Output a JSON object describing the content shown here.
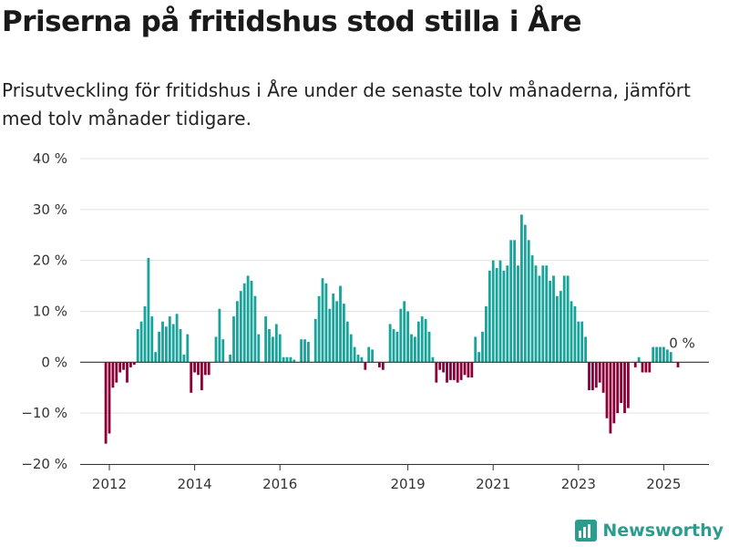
{
  "title": "Priserna på fritidshus stod stilla i Åre",
  "subtitle": "Prisutveckling för fritidshus i Åre under de senaste tolv månaderna, jämfört med tolv månader tidigare.",
  "brand": "Newsworthy",
  "colors": {
    "positive": "#18a39b",
    "negative": "#8c0038",
    "brand": "#2a9d8f"
  },
  "chart_data": {
    "type": "bar",
    "ylim": [
      -20,
      40
    ],
    "yticks": [
      -20,
      -10,
      0,
      10,
      20,
      30,
      40
    ],
    "ytick_labels": [
      "−20 %",
      "−10 %",
      "0 %",
      "10 %",
      "20 %",
      "30 %",
      "40 %"
    ],
    "xticks": [
      {
        "label": "2012",
        "date": "2012-01"
      },
      {
        "label": "2014",
        "date": "2014-01"
      },
      {
        "label": "2016",
        "date": "2016-01"
      },
      {
        "label": "2019",
        "date": "2019-01"
      },
      {
        "label": "2021",
        "date": "2021-01"
      },
      {
        "label": "2023",
        "date": "2023-01"
      },
      {
        "label": "2025",
        "date": "2025-01"
      }
    ],
    "last_label": "0 %",
    "series": [
      {
        "start": "2011-12",
        "values": [
          -16,
          -14,
          -5,
          -4,
          -2,
          -1.5,
          -4,
          -1,
          -0.5,
          6.5,
          8,
          11,
          20.5,
          9,
          2,
          6,
          8,
          7,
          9,
          7.5,
          9.5,
          6.5,
          1.5,
          5.5,
          -6,
          -2,
          -2.5,
          -5.5,
          -2.5,
          -2.5,
          0,
          5,
          10.5,
          4.5,
          0,
          1.5,
          9,
          12,
          14,
          15.5,
          17,
          16,
          13,
          5.5,
          0,
          9,
          6.5,
          5,
          7.5,
          5.5,
          1,
          1,
          1,
          0.5,
          0,
          4.5,
          4.5,
          4,
          0,
          8.5,
          13,
          16.5,
          15.5,
          10.5,
          13.5,
          12,
          15,
          11.5,
          8,
          5.5,
          3,
          1.5,
          1,
          -1.5,
          3,
          2.5,
          0,
          -1,
          -1.5,
          0,
          7.5,
          6.5,
          6,
          10.5,
          12,
          10,
          5.5,
          5,
          8,
          9,
          8.5,
          6,
          1,
          -4,
          -1.5,
          -2,
          -4,
          -3.5,
          -3.5,
          -4,
          -3.5,
          -2.5,
          -3,
          -3,
          5,
          2,
          6,
          11,
          18,
          20,
          18.5,
          20,
          18,
          19,
          24,
          24,
          19,
          29,
          27,
          24,
          21,
          19,
          17,
          19,
          19,
          16,
          17,
          13,
          14,
          17,
          17,
          12,
          11,
          8,
          8,
          5,
          -5.5,
          -5.5,
          -5,
          -4,
          -6,
          -11,
          -14,
          -12,
          -10,
          -8,
          -10,
          -9,
          0,
          -1,
          1,
          -2,
          -2,
          -2,
          3,
          3,
          3,
          3,
          2.5,
          2,
          0,
          -1
        ]
      }
    ]
  }
}
